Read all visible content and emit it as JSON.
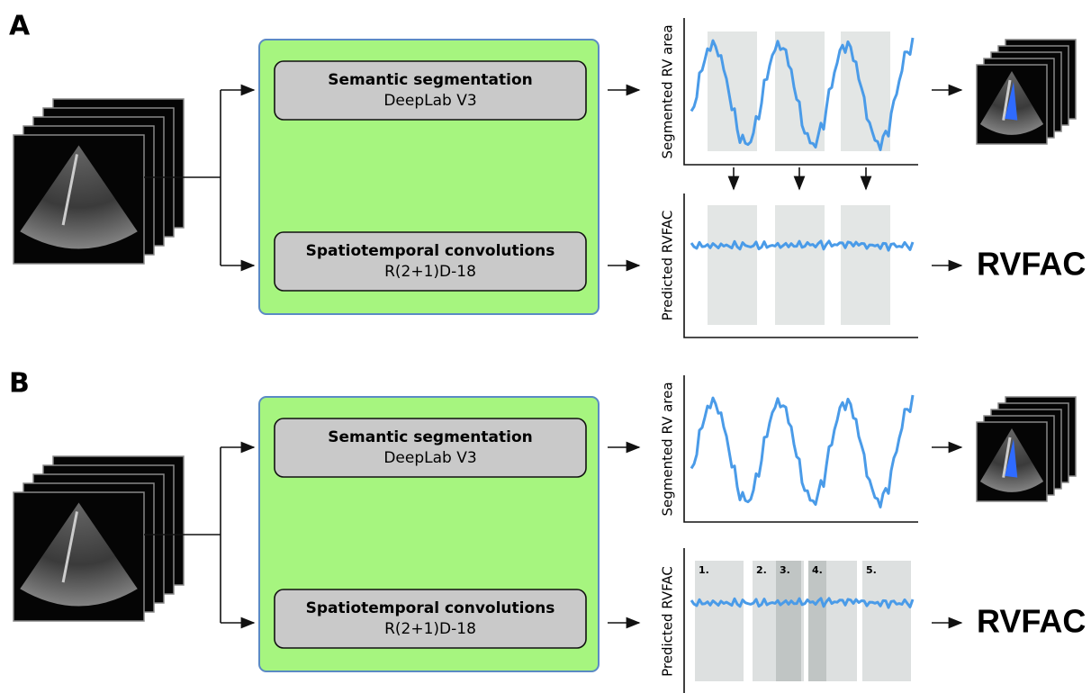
{
  "panels": [
    {
      "label": "A",
      "segmentation": {
        "title": "Semantic segmentation",
        "model": "DeepLab V3"
      },
      "convolution": {
        "title": "Spatiotemporal convolutions",
        "model": "R(2+1)D-18"
      },
      "top_plot_label": "Segmented RV area",
      "bottom_plot_label": "Predicted RVFAC",
      "output": "RVFAC"
    },
    {
      "label": "B",
      "segmentation": {
        "title": "Semantic segmentation",
        "model": "DeepLab V3"
      },
      "convolution": {
        "title": "Spatiotemporal convolutions",
        "model": "R(2+1)D-18"
      },
      "top_plot_label": "Segmented RV area",
      "bottom_plot_label": "Predicted RVFAC",
      "output": "RVFAC",
      "window_labels": [
        "1.",
        "2.",
        "3.",
        "4.",
        "5."
      ]
    }
  ]
}
